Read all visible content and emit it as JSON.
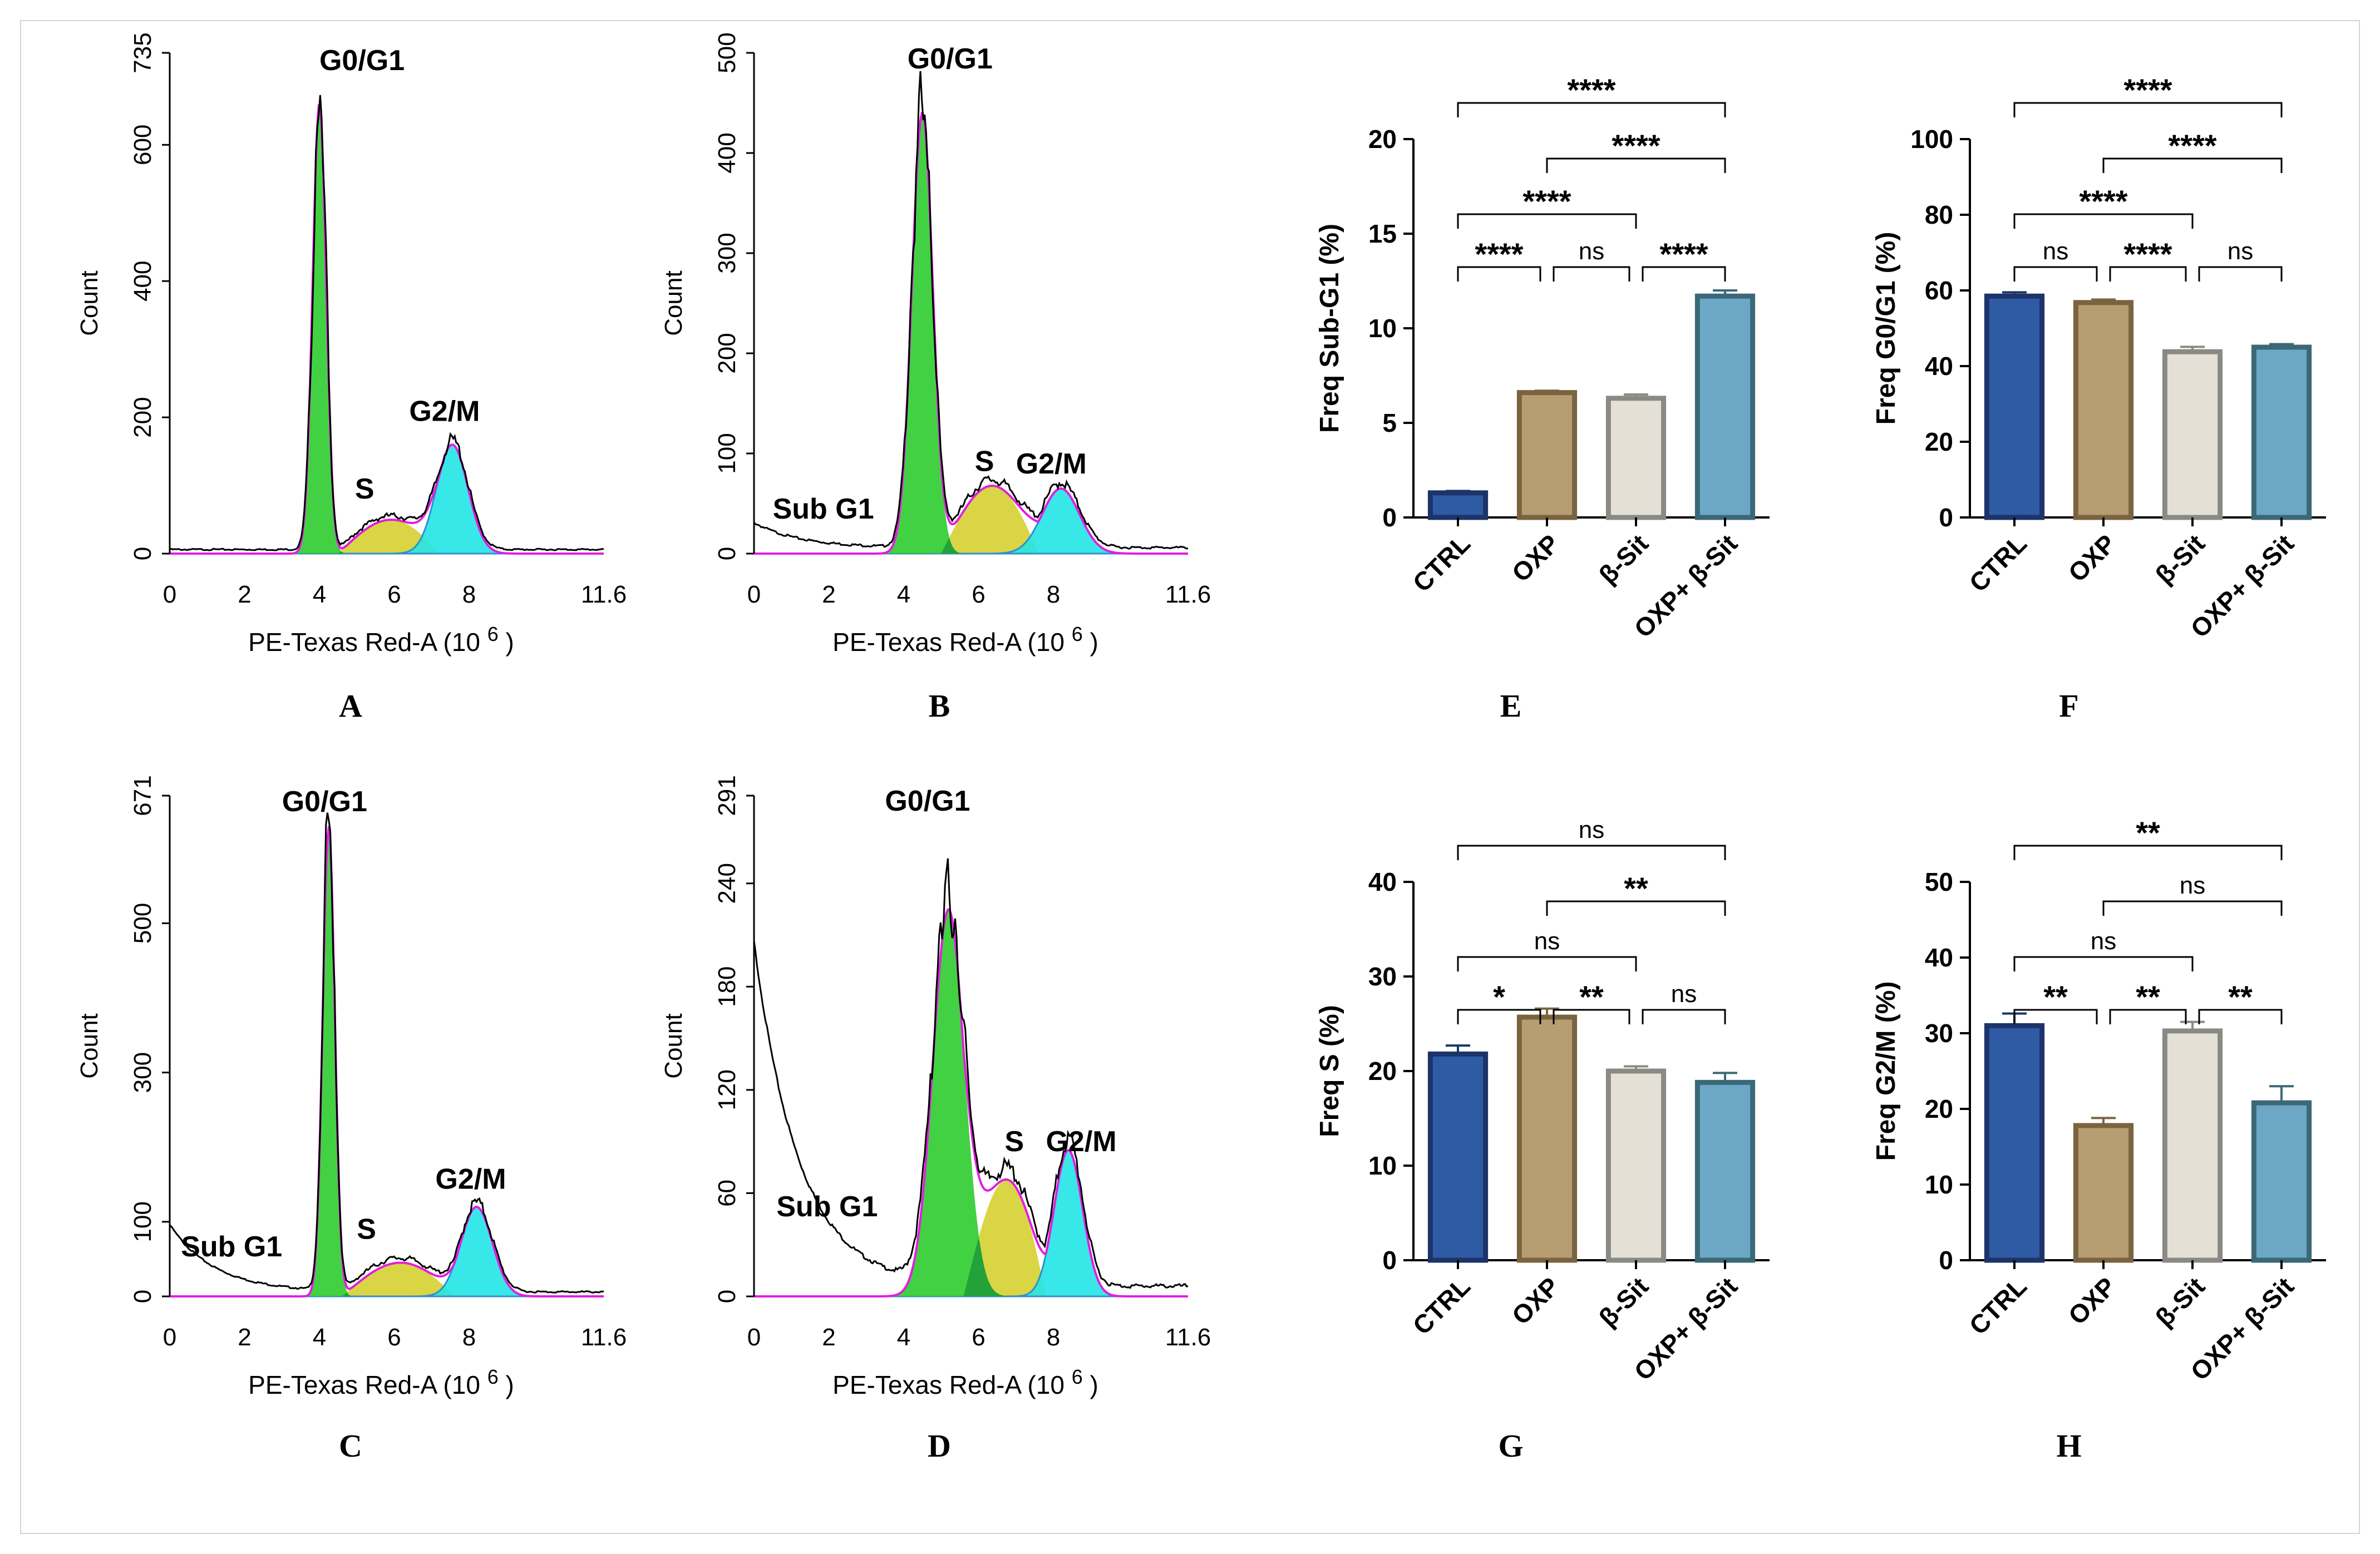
{
  "chart_data": [
    {
      "id": "A",
      "type": "histogram",
      "panel_label": "A",
      "xlabel": "PE-Texas Red-A",
      "xlabel_unit": "(10",
      "xlabel_exp": "6",
      "xlabel_close": ")",
      "ylabel": "Count",
      "xlim": [
        0,
        11.6
      ],
      "ylim": [
        0,
        735
      ],
      "xticks": [
        "0",
        "2",
        "4",
        "6",
        "8",
        "11.6"
      ],
      "xtick_values": [
        0,
        2,
        4,
        6,
        8,
        11.6
      ],
      "yticks": [
        "0",
        "200",
        "400",
        "600",
        "735"
      ],
      "ytick_values": [
        0,
        200,
        400,
        600,
        735
      ],
      "annotations": [
        "G0/G1",
        "S",
        "G2/M"
      ],
      "peaks": {
        "subg1": 0,
        "g1_pos": 4.0,
        "g1_h": 660,
        "g1_w": 0.18,
        "s_h": 55,
        "s_start": 4.5,
        "s_end": 7.2,
        "g2_pos": 7.55,
        "g2_h": 160,
        "g2_w": 0.42
      }
    },
    {
      "id": "B",
      "type": "histogram",
      "panel_label": "B",
      "xlabel": "PE-Texas Red-A",
      "xlabel_unit": "(10",
      "xlabel_exp": "6",
      "xlabel_close": ")",
      "ylabel": "Count",
      "xlim": [
        0,
        11.6
      ],
      "ylim": [
        0,
        500
      ],
      "xticks": [
        "0",
        "2",
        "4",
        "6",
        "8",
        "11.6"
      ],
      "xtick_values": [
        0,
        2,
        4,
        6,
        8,
        11.6
      ],
      "yticks": [
        "0",
        "100",
        "200",
        "300",
        "400",
        "500"
      ],
      "ytick_values": [
        0,
        100,
        200,
        300,
        400,
        500
      ],
      "annotations": [
        "G0/G1",
        "S",
        "G2/M",
        "Sub G1"
      ],
      "peaks": {
        "subg1": 25,
        "g1_pos": 4.5,
        "g1_h": 440,
        "g1_w": 0.28,
        "s_h": 75,
        "s_start": 5.0,
        "s_end": 7.6,
        "g2_pos": 8.2,
        "g2_h": 65,
        "g2_w": 0.5
      }
    },
    {
      "id": "C",
      "type": "histogram",
      "panel_label": "C",
      "xlabel": "PE-Texas Red-A",
      "xlabel_unit": "(10",
      "xlabel_exp": "6",
      "xlabel_close": ")",
      "ylabel": "Count",
      "xlim": [
        0,
        11.6
      ],
      "ylim": [
        0,
        671
      ],
      "xticks": [
        "0",
        "2",
        "4",
        "6",
        "8",
        "11.6"
      ],
      "xtick_values": [
        0,
        2,
        4,
        6,
        8,
        11.6
      ],
      "yticks": [
        "0",
        "100",
        "300",
        "500",
        "671"
      ],
      "ytick_values": [
        0,
        100,
        300,
        500,
        671
      ],
      "annotations": [
        "G0/G1",
        "S",
        "G2/M",
        "Sub G1"
      ],
      "peaks": {
        "subg1": 90,
        "g1_pos": 4.25,
        "g1_h": 630,
        "g1_w": 0.16,
        "s_h": 50,
        "s_start": 4.6,
        "s_end": 7.6,
        "g2_pos": 8.2,
        "g2_h": 120,
        "g2_w": 0.42
      }
    },
    {
      "id": "D",
      "type": "histogram",
      "panel_label": "D",
      "xlabel": "PE-Texas Red-A",
      "xlabel_unit": "(10",
      "xlabel_exp": "6",
      "xlabel_close": ")",
      "ylabel": "Count",
      "xlim": [
        0,
        11.6
      ],
      "ylim": [
        0,
        291
      ],
      "xticks": [
        "0",
        "2",
        "4",
        "6",
        "8",
        "11.6"
      ],
      "xtick_values": [
        0,
        2,
        4,
        6,
        8,
        11.6
      ],
      "yticks": [
        "0",
        "60",
        "120",
        "180",
        "240",
        "291"
      ],
      "ytick_values": [
        0,
        60,
        120,
        180,
        240,
        291
      ],
      "annotations": [
        "G0/G1",
        "S",
        "G2/M",
        "Sub G1"
      ],
      "peaks": {
        "subg1": 200,
        "g1_pos": 5.2,
        "g1_h": 225,
        "g1_w": 0.42,
        "s_h": 75,
        "s_start": 5.6,
        "s_end": 7.8,
        "g2_pos": 8.4,
        "g2_h": 85,
        "g2_w": 0.38
      }
    },
    {
      "id": "E",
      "type": "bar",
      "panel_label": "E",
      "ylabel": "Freq Sub-G1 (%)",
      "ylim": [
        0,
        20
      ],
      "yticks": [
        "0",
        "5",
        "10",
        "15",
        "20"
      ],
      "ytick_values": [
        0,
        5,
        10,
        15,
        20
      ],
      "categories": [
        "CTRL",
        "OXP",
        "β-Sit",
        "OXP+ β-Sit"
      ],
      "values": [
        1.3,
        6.6,
        6.3,
        11.7
      ],
      "errors": [
        0.1,
        0.1,
        0.2,
        0.3
      ],
      "comparisons": [
        {
          "a": 0,
          "b": 1,
          "label": "****",
          "tier": 1
        },
        {
          "a": 1,
          "b": 2,
          "label": "ns",
          "tier": 1
        },
        {
          "a": 2,
          "b": 3,
          "label": "****",
          "tier": 1
        },
        {
          "a": 0,
          "b": 2,
          "label": "****",
          "tier": 2
        },
        {
          "a": 1,
          "b": 3,
          "label": "****",
          "tier": 3
        },
        {
          "a": 0,
          "b": 3,
          "label": "****",
          "tier": 4
        }
      ]
    },
    {
      "id": "F",
      "type": "bar",
      "panel_label": "F",
      "ylabel": "Freq G0/G1 (%)",
      "ylim": [
        0,
        100
      ],
      "yticks": [
        "0",
        "20",
        "40",
        "60",
        "80",
        "100"
      ],
      "ytick_values": [
        0,
        20,
        40,
        60,
        80,
        100
      ],
      "categories": [
        "CTRL",
        "OXP",
        "β-Sit",
        "OXP+ β-Sit"
      ],
      "values": [
        58.5,
        56.8,
        43.8,
        45.0
      ],
      "errors": [
        1.0,
        0.8,
        1.3,
        0.8
      ],
      "comparisons": [
        {
          "a": 0,
          "b": 1,
          "label": "ns",
          "tier": 1
        },
        {
          "a": 1,
          "b": 2,
          "label": "****",
          "tier": 1
        },
        {
          "a": 2,
          "b": 3,
          "label": "ns",
          "tier": 1
        },
        {
          "a": 0,
          "b": 2,
          "label": "****",
          "tier": 2
        },
        {
          "a": 1,
          "b": 3,
          "label": "****",
          "tier": 3
        },
        {
          "a": 0,
          "b": 3,
          "label": "****",
          "tier": 4
        }
      ]
    },
    {
      "id": "G",
      "type": "bar",
      "panel_label": "G",
      "ylabel": "Freq S (%)",
      "ylim": [
        0,
        40
      ],
      "yticks": [
        "0",
        "10",
        "20",
        "30",
        "40"
      ],
      "ytick_values": [
        0,
        10,
        20,
        30,
        40
      ],
      "categories": [
        "CTRL",
        "OXP",
        "β-Sit",
        "OXP+ β-Sit"
      ],
      "values": [
        21.8,
        25.7,
        20.0,
        18.8
      ],
      "errors": [
        0.9,
        0.9,
        0.5,
        1.0
      ],
      "comparisons": [
        {
          "a": 0,
          "b": 1,
          "label": "*",
          "tier": 1
        },
        {
          "a": 1,
          "b": 2,
          "label": "**",
          "tier": 1
        },
        {
          "a": 2,
          "b": 3,
          "label": "ns",
          "tier": 1
        },
        {
          "a": 0,
          "b": 2,
          "label": "ns",
          "tier": 2
        },
        {
          "a": 1,
          "b": 3,
          "label": "**",
          "tier": 3
        },
        {
          "a": 0,
          "b": 3,
          "label": "ns",
          "tier": 4
        }
      ]
    },
    {
      "id": "H",
      "type": "bar",
      "panel_label": "H",
      "ylabel": "Freq G2/M (%)",
      "ylim": [
        0,
        50
      ],
      "yticks": [
        "0",
        "10",
        "20",
        "30",
        "40",
        "50"
      ],
      "ytick_values": [
        0,
        10,
        20,
        30,
        40,
        50
      ],
      "categories": [
        "CTRL",
        "OXP",
        "β-Sit",
        "OXP+ β-Sit"
      ],
      "values": [
        31.0,
        17.8,
        30.3,
        20.8
      ],
      "errors": [
        1.6,
        1.0,
        1.2,
        2.2
      ],
      "comparisons": [
        {
          "a": 0,
          "b": 1,
          "label": "**",
          "tier": 1
        },
        {
          "a": 1,
          "b": 2,
          "label": "**",
          "tier": 1
        },
        {
          "a": 2,
          "b": 3,
          "label": "**",
          "tier": 1
        },
        {
          "a": 0,
          "b": 2,
          "label": "ns",
          "tier": 2
        },
        {
          "a": 1,
          "b": 3,
          "label": "ns",
          "tier": 3
        },
        {
          "a": 0,
          "b": 3,
          "label": "**",
          "tier": 4
        }
      ]
    }
  ],
  "colors": {
    "bar_fill": [
      "#2f5aa4",
      "#b69d72",
      "#e4e0d5",
      "#6ca8c6"
    ],
    "bar_edge": [
      "#1c3469",
      "#7a6440",
      "#8a8a85",
      "#3b6877"
    ],
    "g1": "#2ecc2e",
    "s": "#d6d030",
    "g2": "#22e6e6",
    "g2_edge": "#2f8fd0",
    "fit": "#e21de2",
    "data": "#000000"
  }
}
